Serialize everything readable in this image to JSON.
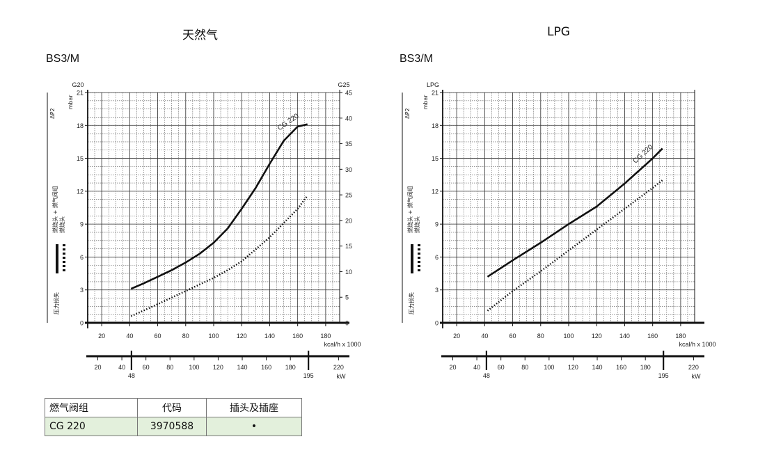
{
  "chart_data": [
    {
      "type": "line",
      "title": "天然气",
      "subtitle": "BS3/M",
      "left_axis_label": "G20",
      "right_axis_label": "G25",
      "ylabel_unit": "mbar",
      "ylabel_symbol": "ΔP2",
      "ylabel": "压力损失",
      "legend": [
        "燃烧头 + 燃气阀组",
        "燃烧头"
      ],
      "xlabel": "kcal/h x 1000",
      "xlabel_kw": "kW",
      "xlim": [
        10,
        190
      ],
      "ylim": [
        0,
        21
      ],
      "ylim_right": [
        0,
        45
      ],
      "xticks": [
        20,
        40,
        60,
        80,
        100,
        120,
        140,
        160,
        180
      ],
      "yticks": [
        0,
        3,
        6,
        9,
        12,
        15,
        18,
        21
      ],
      "yticks_right": [
        0,
        5,
        10,
        15,
        20,
        25,
        30,
        35,
        40,
        45
      ],
      "kw_ticks": [
        20,
        40,
        60,
        80,
        100,
        120,
        140,
        160,
        180,
        220
      ],
      "kw_markers": [
        48,
        195
      ],
      "grid": true,
      "series": [
        {
          "name": "CG 220",
          "style": "solid",
          "x": [
            41,
            50,
            60,
            70,
            80,
            90,
            100,
            110,
            120,
            130,
            140,
            150,
            160,
            167
          ],
          "y": [
            3.1,
            3.6,
            4.2,
            4.8,
            5.5,
            6.3,
            7.3,
            8.6,
            10.4,
            12.3,
            14.5,
            16.6,
            17.9,
            18.1
          ]
        },
        {
          "name": "",
          "style": "dotted",
          "x": [
            41,
            60,
            80,
            100,
            110,
            120,
            140,
            160,
            167
          ],
          "y": [
            0.6,
            1.7,
            2.9,
            4.1,
            4.8,
            5.6,
            7.8,
            10.4,
            11.6
          ]
        }
      ]
    },
    {
      "type": "line",
      "title": "LPG",
      "subtitle": "BS3/M",
      "left_axis_label": "LPG",
      "ylabel_unit": "mbar",
      "ylabel_symbol": "ΔP2",
      "ylabel": "压力损失",
      "legend": [
        "燃烧头 + 燃气阀组",
        "燃烧头"
      ],
      "xlabel": "kcal/h x 1000",
      "xlabel_kw": "kW",
      "xlim": [
        10,
        190
      ],
      "ylim": [
        0,
        21
      ],
      "xticks": [
        20,
        40,
        60,
        80,
        100,
        120,
        140,
        160,
        180
      ],
      "yticks": [
        0,
        3,
        6,
        9,
        12,
        15,
        18,
        21
      ],
      "kw_ticks": [
        20,
        40,
        60,
        80,
        100,
        120,
        140,
        160,
        180,
        220
      ],
      "kw_markers": [
        48,
        195
      ],
      "grid": true,
      "series": [
        {
          "name": "CG 220",
          "style": "solid",
          "x": [
            42,
            60,
            80,
            100,
            120,
            140,
            160,
            167
          ],
          "y": [
            4.2,
            5.7,
            7.3,
            9.0,
            10.6,
            12.7,
            15.0,
            15.9
          ]
        },
        {
          "name": "",
          "style": "dotted",
          "x": [
            42,
            60,
            80,
            100,
            120,
            140,
            160,
            167
          ],
          "y": [
            1.1,
            2.9,
            4.7,
            6.6,
            8.5,
            10.4,
            12.3,
            13.0
          ]
        }
      ]
    }
  ],
  "table": {
    "headers": [
      "燃气阀组",
      "代码",
      "插头及插座"
    ],
    "row": [
      "CG 220",
      "3970588",
      "•"
    ]
  }
}
